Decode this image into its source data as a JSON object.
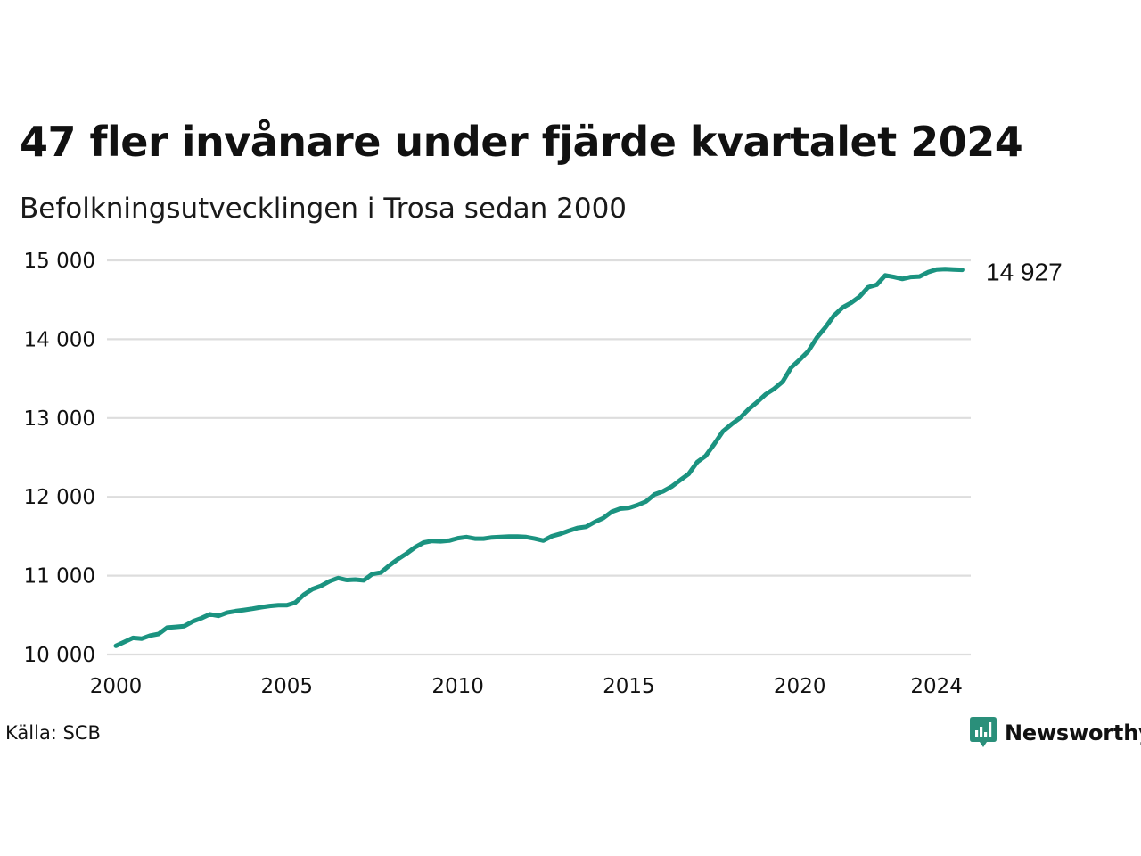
{
  "title": "47 fler invånare under fjärde kvartalet 2024",
  "subtitle": "Befolkningsutvecklingen i Trosa sedan 2000",
  "source": "Källa: SCB",
  "brand": {
    "name": "Newsworthy",
    "icon": "newsworthy-logo-icon",
    "color": "#2a8f7a"
  },
  "colors": {
    "line": "#1b9380",
    "grid": "#dddddd",
    "text": "#111111"
  },
  "chart_data": {
    "type": "line",
    "title": "47 fler invånare under fjärde kvartalet 2024",
    "subtitle": "Befolkningsutvecklingen i Trosa sedan 2000",
    "xlabel": "",
    "ylabel": "",
    "xlim": [
      2000.0,
      2025.0
    ],
    "ylim": [
      10000,
      15000
    ],
    "grid": true,
    "x_ticks": [
      2000,
      2005,
      2010,
      2015,
      2020,
      2024
    ],
    "x_tick_labels": [
      "2000",
      "2005",
      "2010",
      "2015",
      "2020",
      "2024"
    ],
    "y_ticks": [
      10000,
      11000,
      12000,
      13000,
      14000,
      15000
    ],
    "y_tick_labels": [
      "10 000",
      "11 000",
      "12 000",
      "13 000",
      "14 000",
      "15 000"
    ],
    "end_label": "14 927",
    "series": [
      {
        "x": [
          2000.0,
          2000.25,
          2000.5,
          2000.75,
          2001.0,
          2001.25,
          2001.5,
          2001.75,
          2002.0,
          2002.25,
          2002.5,
          2002.75,
          2003.0,
          2003.25,
          2003.5,
          2003.75,
          2004.0,
          2004.25,
          2004.5,
          2004.75,
          2005.0,
          2005.25,
          2005.5,
          2005.75,
          2006.0,
          2006.25,
          2006.5,
          2006.75,
          2007.0,
          2007.25,
          2007.5,
          2007.75,
          2008.0,
          2008.25,
          2008.5,
          2008.75,
          2009.0,
          2009.25,
          2009.5,
          2009.75,
          2010.0,
          2010.25,
          2010.5,
          2010.75,
          2011.0,
          2011.25,
          2011.5,
          2011.75,
          2012.0,
          2012.25,
          2012.5,
          2012.75,
          2013.0,
          2013.25,
          2013.5,
          2013.75,
          2014.0,
          2014.25,
          2014.5,
          2014.75,
          2015.0,
          2015.25,
          2015.5,
          2015.75,
          2016.0,
          2016.25,
          2016.5,
          2016.75,
          2017.0,
          2017.25,
          2017.5,
          2017.75,
          2018.0,
          2018.25,
          2018.5,
          2018.75,
          2019.0,
          2019.25,
          2019.5,
          2019.75,
          2020.0,
          2020.25,
          2020.5,
          2020.75,
          2021.0,
          2021.25,
          2021.5,
          2021.75,
          2022.0,
          2022.25,
          2022.5,
          2022.75,
          2023.0,
          2023.25,
          2023.5,
          2023.75,
          2024.0,
          2024.25,
          2024.5,
          2024.75
        ],
        "values": [
          10110,
          10160,
          10210,
          10200,
          10240,
          10260,
          10340,
          10350,
          10360,
          10420,
          10460,
          10510,
          10490,
          10530,
          10550,
          10565,
          10580,
          10600,
          10615,
          10625,
          10625,
          10660,
          10760,
          10830,
          10870,
          10930,
          10970,
          10945,
          10950,
          10940,
          11020,
          11040,
          11130,
          11210,
          11280,
          11360,
          11420,
          11440,
          11435,
          11445,
          11475,
          11490,
          11470,
          11470,
          11485,
          11490,
          11495,
          11495,
          11490,
          11470,
          11445,
          11500,
          11530,
          11570,
          11605,
          11620,
          11680,
          11730,
          11810,
          11850,
          11860,
          11895,
          11940,
          12030,
          12070,
          12130,
          12210,
          12290,
          12440,
          12520,
          12670,
          12830,
          12920,
          13000,
          13110,
          13200,
          13300,
          13370,
          13460,
          13640,
          13740,
          13850,
          14020,
          14150,
          14300,
          14400,
          14460,
          14540,
          14660,
          14690,
          14810,
          14790,
          14765,
          14790,
          14795,
          14850,
          14885,
          14890,
          14885,
          14880
        ]
      }
    ]
  }
}
